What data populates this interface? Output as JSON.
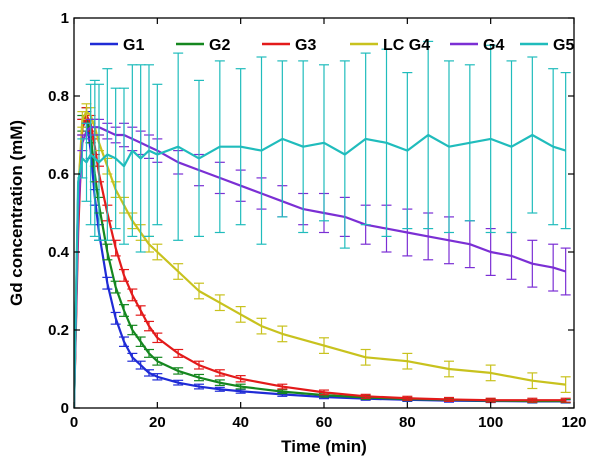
{
  "chart_data": {
    "type": "line",
    "xlabel": "Time (min)",
    "ylabel": "Gd concentration (mM)",
    "xlim": [
      0,
      120
    ],
    "ylim": [
      0,
      1
    ],
    "x_ticks": [
      "0",
      "20",
      "40",
      "60",
      "80",
      "100",
      "120"
    ],
    "y_ticks": [
      "0",
      "0.2",
      "0.4",
      "0.6",
      "0.8",
      "1"
    ],
    "grid": false,
    "legend_position": "top",
    "series": [
      {
        "name": "G1",
        "color": "#1f2bd6",
        "x": [
          0,
          1,
          2,
          3,
          4,
          5,
          6,
          8,
          10,
          12,
          14,
          16,
          18,
          20,
          25,
          30,
          35,
          40,
          50,
          60,
          70,
          80,
          90,
          100,
          110,
          118
        ],
        "y": [
          0.0,
          0.55,
          0.72,
          0.74,
          0.66,
          0.54,
          0.45,
          0.32,
          0.23,
          0.17,
          0.13,
          0.11,
          0.09,
          0.08,
          0.065,
          0.055,
          0.048,
          0.043,
          0.035,
          0.028,
          0.024,
          0.021,
          0.019,
          0.018,
          0.017,
          0.017
        ],
        "error": [
          0,
          0,
          0.02,
          0.02,
          0.02,
          0.02,
          0.02,
          0.015,
          0.015,
          0.012,
          0.01,
          0.01,
          0.008,
          0.008,
          0.006,
          0.006,
          0.005,
          0.005,
          0.005,
          0.004,
          0.004,
          0.004,
          0.004,
          0.004,
          0.004,
          0.004
        ]
      },
      {
        "name": "G2",
        "color": "#15871f",
        "x": [
          0,
          1,
          2,
          3,
          4,
          5,
          6,
          8,
          10,
          12,
          14,
          16,
          18,
          20,
          25,
          30,
          35,
          40,
          50,
          60,
          70,
          80,
          90,
          100,
          110,
          118
        ],
        "y": [
          0.0,
          0.5,
          0.73,
          0.75,
          0.7,
          0.6,
          0.52,
          0.4,
          0.31,
          0.25,
          0.2,
          0.17,
          0.14,
          0.12,
          0.095,
          0.078,
          0.065,
          0.055,
          0.042,
          0.033,
          0.027,
          0.023,
          0.021,
          0.019,
          0.018,
          0.018
        ],
        "error": [
          0,
          0,
          0.02,
          0.02,
          0.02,
          0.02,
          0.02,
          0.02,
          0.015,
          0.015,
          0.012,
          0.012,
          0.01,
          0.01,
          0.008,
          0.008,
          0.007,
          0.006,
          0.005,
          0.005,
          0.005,
          0.004,
          0.004,
          0.004,
          0.004,
          0.004
        ]
      },
      {
        "name": "G3",
        "color": "#e31a1a",
        "x": [
          0,
          1,
          2,
          3,
          4,
          5,
          6,
          8,
          10,
          12,
          14,
          16,
          18,
          20,
          25,
          30,
          35,
          40,
          50,
          60,
          70,
          80,
          90,
          100,
          110,
          118
        ],
        "y": [
          0.0,
          0.45,
          0.72,
          0.75,
          0.73,
          0.67,
          0.6,
          0.5,
          0.41,
          0.34,
          0.29,
          0.25,
          0.21,
          0.18,
          0.14,
          0.11,
          0.09,
          0.075,
          0.055,
          0.04,
          0.03,
          0.025,
          0.022,
          0.02,
          0.02,
          0.02
        ],
        "error": [
          0,
          0,
          0.02,
          0.02,
          0.02,
          0.02,
          0.02,
          0.02,
          0.02,
          0.015,
          0.015,
          0.012,
          0.012,
          0.012,
          0.01,
          0.01,
          0.008,
          0.008,
          0.006,
          0.006,
          0.005,
          0.005,
          0.005,
          0.005,
          0.005,
          0.005
        ]
      },
      {
        "name": "LC G4",
        "color": "#c8c21e",
        "x": [
          0,
          1,
          2,
          3,
          4,
          5,
          6,
          8,
          10,
          12,
          14,
          16,
          18,
          20,
          25,
          30,
          35,
          40,
          45,
          50,
          60,
          70,
          80,
          90,
          100,
          110,
          118
        ],
        "y": [
          0.0,
          0.55,
          0.74,
          0.76,
          0.75,
          0.72,
          0.68,
          0.62,
          0.56,
          0.52,
          0.48,
          0.45,
          0.42,
          0.4,
          0.35,
          0.3,
          0.27,
          0.24,
          0.21,
          0.19,
          0.16,
          0.13,
          0.12,
          0.1,
          0.09,
          0.07,
          0.06
        ],
        "error": [
          0,
          0,
          0.02,
          0.02,
          0.02,
          0.02,
          0.02,
          0.02,
          0.02,
          0.02,
          0.02,
          0.02,
          0.02,
          0.02,
          0.02,
          0.02,
          0.02,
          0.02,
          0.02,
          0.02,
          0.02,
          0.02,
          0.02,
          0.02,
          0.02,
          0.02,
          0.02
        ]
      },
      {
        "name": "G4",
        "color": "#7b2fd4",
        "x": [
          0,
          1,
          2,
          3,
          4,
          5,
          6,
          8,
          10,
          12,
          14,
          16,
          18,
          20,
          25,
          30,
          35,
          40,
          45,
          50,
          55,
          60,
          65,
          70,
          75,
          80,
          85,
          90,
          95,
          100,
          105,
          110,
          115,
          118
        ],
        "y": [
          0.0,
          0.5,
          0.68,
          0.71,
          0.72,
          0.72,
          0.72,
          0.71,
          0.7,
          0.7,
          0.69,
          0.68,
          0.67,
          0.66,
          0.63,
          0.61,
          0.59,
          0.57,
          0.55,
          0.53,
          0.51,
          0.5,
          0.49,
          0.47,
          0.46,
          0.45,
          0.44,
          0.43,
          0.42,
          0.4,
          0.39,
          0.37,
          0.36,
          0.35
        ],
        "error": [
          0,
          0,
          0.02,
          0.02,
          0.02,
          0.02,
          0.02,
          0.02,
          0.02,
          0.03,
          0.03,
          0.03,
          0.03,
          0.03,
          0.03,
          0.04,
          0.04,
          0.04,
          0.04,
          0.04,
          0.04,
          0.05,
          0.05,
          0.05,
          0.06,
          0.06,
          0.06,
          0.06,
          0.06,
          0.06,
          0.06,
          0.06,
          0.06,
          0.06
        ]
      },
      {
        "name": "G5",
        "color": "#20bcbc",
        "x": [
          0,
          1,
          2,
          3,
          4,
          5,
          6,
          8,
          10,
          12,
          14,
          16,
          18,
          20,
          25,
          30,
          35,
          40,
          45,
          50,
          55,
          60,
          65,
          70,
          75,
          80,
          85,
          90,
          95,
          100,
          105,
          110,
          115,
          118
        ],
        "y": [
          0.0,
          0.58,
          0.64,
          0.63,
          0.65,
          0.64,
          0.63,
          0.65,
          0.64,
          0.62,
          0.66,
          0.64,
          0.66,
          0.65,
          0.67,
          0.64,
          0.67,
          0.67,
          0.66,
          0.69,
          0.67,
          0.68,
          0.65,
          0.69,
          0.68,
          0.66,
          0.7,
          0.67,
          0.68,
          0.69,
          0.67,
          0.7,
          0.67,
          0.66
        ],
        "error": [
          0,
          0,
          0.05,
          0.1,
          0.18,
          0.2,
          0.2,
          0.22,
          0.18,
          0.2,
          0.22,
          0.24,
          0.22,
          0.18,
          0.24,
          0.2,
          0.22,
          0.2,
          0.24,
          0.2,
          0.22,
          0.2,
          0.24,
          0.22,
          0.24,
          0.2,
          0.24,
          0.22,
          0.2,
          0.24,
          0.22,
          0.2,
          0.2,
          0.2
        ]
      }
    ]
  }
}
